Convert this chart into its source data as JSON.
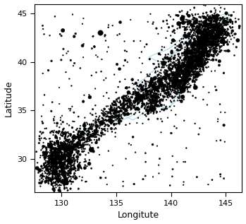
{
  "xlim": [
    127.5,
    146.5
  ],
  "ylim": [
    26.5,
    46.0
  ],
  "xticks": [
    130,
    135,
    140,
    145
  ],
  "yticks": [
    30,
    35,
    40,
    45
  ],
  "xlabel": "Longitute",
  "ylabel": "Latitude",
  "background_color": "#ffffff",
  "coast_color": "#add8e6",
  "seed": 42,
  "coast_segments": [
    {
      "lon": [
        128.0,
        128.3,
        128.8,
        129.2,
        129.5,
        129.8,
        130.0,
        130.2,
        130.5,
        130.8,
        131.0,
        131.3,
        131.5,
        131.8,
        132.0,
        132.3,
        132.5,
        132.8,
        133.0,
        133.3,
        133.8,
        134.2,
        134.5,
        134.8,
        135.0,
        135.2,
        135.3,
        135.5,
        135.7,
        136.0,
        136.2,
        136.4,
        136.5,
        136.6,
        136.7,
        136.8,
        137.0,
        137.0,
        136.9,
        136.8,
        137.0,
        137.2,
        137.5,
        137.8,
        138.0,
        138.3,
        138.5,
        138.8,
        139.0,
        139.2,
        139.5,
        139.7,
        140.0,
        140.3,
        140.5,
        140.7,
        141.0,
        141.2,
        141.5
      ],
      "lat": [
        28.0,
        28.3,
        28.8,
        29.2,
        29.6,
        30.0,
        30.5,
        31.0,
        31.3,
        31.5,
        31.8,
        32.0,
        32.3,
        32.5,
        32.8,
        33.0,
        33.2,
        33.5,
        33.8,
        34.0,
        34.2,
        34.3,
        34.3,
        34.2,
        34.3,
        34.5,
        34.8,
        35.0,
        35.2,
        35.3,
        35.5,
        35.6,
        35.8,
        36.0,
        36.3,
        36.5,
        36.8,
        37.0,
        37.3,
        37.5,
        37.8,
        38.0,
        38.2,
        38.5,
        38.8,
        39.0,
        39.2,
        39.5,
        39.8,
        40.0,
        40.2,
        40.5,
        40.8,
        41.0,
        41.3,
        41.5,
        41.8,
        42.0,
        42.3
      ]
    },
    {
      "lon": [
        130.3,
        130.8,
        131.2,
        131.5,
        131.8,
        132.2,
        132.5,
        133.0,
        133.5,
        134.0,
        134.5,
        135.0,
        135.5,
        136.0,
        136.5,
        137.0,
        137.5,
        138.0,
        138.5,
        139.0,
        139.5,
        140.0,
        140.5,
        141.0,
        141.5,
        142.0,
        142.5,
        143.0,
        143.5,
        144.0,
        144.5,
        145.0
      ],
      "lat": [
        31.0,
        31.2,
        31.3,
        31.5,
        32.0,
        32.5,
        33.0,
        33.2,
        33.5,
        33.8,
        34.0,
        33.8,
        34.0,
        34.2,
        34.5,
        35.0,
        35.5,
        36.0,
        36.5,
        35.5,
        35.2,
        35.5,
        36.0,
        37.0,
        38.0,
        39.0,
        40.0,
        41.0,
        42.0,
        42.8,
        43.5,
        44.0
      ]
    },
    {
      "lon": [
        135.5,
        136.0,
        136.5,
        137.0,
        137.5,
        138.0,
        138.5,
        139.0,
        139.5,
        140.0,
        140.5,
        141.0,
        141.5,
        141.8,
        142.0,
        142.3,
        142.5,
        143.0,
        143.5,
        144.0,
        144.5,
        145.0,
        145.3
      ],
      "lat": [
        34.5,
        34.3,
        34.0,
        34.3,
        34.8,
        35.0,
        35.3,
        35.5,
        35.0,
        35.5,
        36.5,
        37.5,
        38.5,
        39.5,
        40.5,
        41.5,
        42.5,
        43.2,
        43.8,
        44.2,
        44.5,
        44.8,
        45.0
      ]
    },
    {
      "lon": [
        141.0,
        141.5,
        142.0,
        142.5,
        143.0,
        143.5,
        144.0,
        144.5,
        145.0,
        145.5,
        145.3,
        145.0,
        144.5,
        144.0,
        143.5,
        143.0,
        142.5,
        142.0,
        141.8,
        141.5,
        141.2,
        141.0,
        140.8,
        140.5,
        140.2,
        140.0,
        139.8,
        139.5,
        139.0,
        138.5,
        138.0,
        138.5,
        139.0,
        139.5,
        140.0,
        140.5,
        141.0,
        141.5
      ],
      "lat": [
        42.5,
        43.0,
        43.2,
        43.5,
        43.8,
        44.2,
        44.5,
        44.8,
        45.0,
        44.8,
        44.5,
        44.0,
        43.8,
        43.5,
        43.2,
        43.0,
        42.8,
        42.5,
        42.3,
        42.0,
        41.8,
        41.5,
        41.2,
        41.0,
        40.8,
        40.5,
        40.3,
        40.2,
        40.0,
        40.2,
        40.5,
        40.8,
        41.0,
        41.2,
        41.5,
        42.0,
        42.5,
        43.0
      ]
    }
  ]
}
